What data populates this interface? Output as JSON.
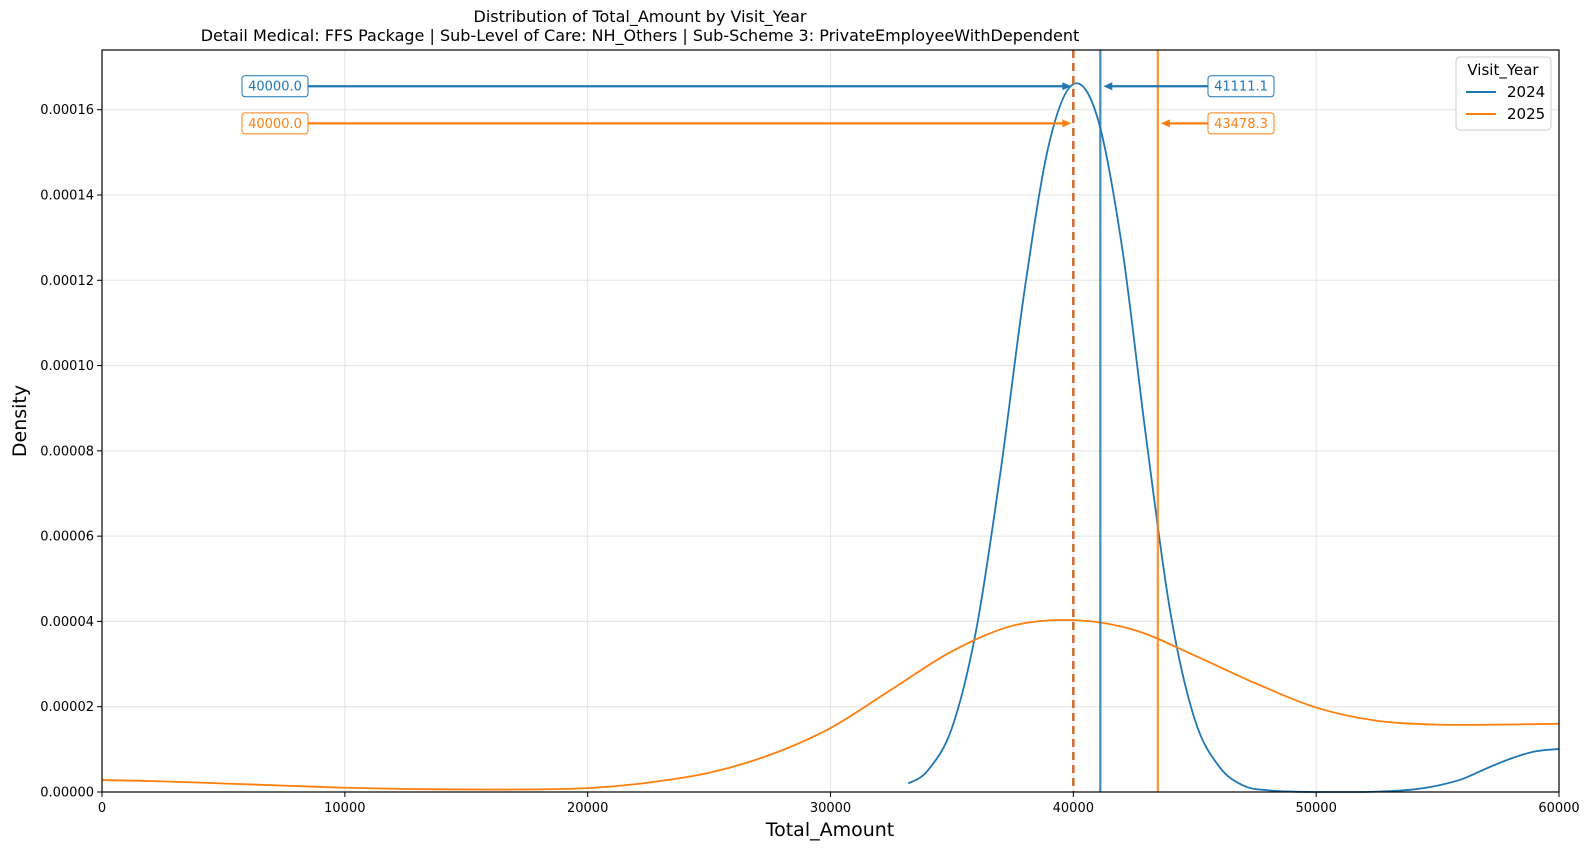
{
  "chart_data": {
    "type": "line",
    "title": "Distribution of Total_Amount by Visit_Year",
    "subtitle": "Detail Medical: FFS Package | Sub-Level of Care: NH_Others | Sub-Scheme 3: PrivateEmployeeWithDependent",
    "xlabel": "Total_Amount",
    "ylabel": "Density",
    "xlim": [
      0,
      60000
    ],
    "ylim": [
      0,
      0.000174
    ],
    "xticks": [
      0,
      10000,
      20000,
      30000,
      40000,
      50000,
      60000
    ],
    "xtick_labels": [
      "0",
      "10000",
      "20000",
      "30000",
      "40000",
      "50000",
      "60000"
    ],
    "yticks": [
      0,
      2e-05,
      4e-05,
      6e-05,
      8e-05,
      0.0001,
      0.00012,
      0.00014,
      0.00016
    ],
    "ytick_labels": [
      "0.00000",
      "0.00002",
      "0.00004",
      "0.00006",
      "0.00008",
      "0.00010",
      "0.00012",
      "0.00014",
      "0.00016"
    ],
    "grid": true,
    "legend": {
      "title": "Visit_Year",
      "placement": "top-right"
    },
    "series": [
      {
        "name": "2024",
        "color": "#1f77b4",
        "x": [
          33200,
          34000,
          35000,
          36000,
          37000,
          38000,
          39000,
          40000,
          41000,
          42000,
          43000,
          44000,
          45000,
          46000,
          47000,
          48000,
          49000,
          50000,
          51000,
          52000,
          53000,
          54000,
          55000,
          56000,
          57000,
          58000,
          59000,
          60000
        ],
        "y": [
          2e-06,
          5e-06,
          1.5e-05,
          3.8e-05,
          7.5e-05,
          0.000118,
          0.000152,
          0.000166,
          0.000158,
          0.000128,
          8.3e-05,
          4.2e-05,
          1.7e-05,
          6e-06,
          1.5e-06,
          4e-07,
          1e-07,
          0.0,
          0.0,
          0.0,
          2e-07,
          6e-07,
          1.5e-06,
          3e-06,
          5.5e-06,
          7.8e-06,
          9.5e-06,
          1.01e-05
        ],
        "mean": 41111.1,
        "median": 40000.0
      },
      {
        "name": "2025",
        "color": "#ff7f0e",
        "x": [
          0,
          2500,
          5000,
          7500,
          10000,
          12500,
          15000,
          17500,
          20000,
          22500,
          25000,
          27500,
          30000,
          32500,
          35000,
          37500,
          40000,
          42500,
          45000,
          47500,
          50000,
          52500,
          55000,
          57500,
          60000
        ],
        "y": [
          2.8e-06,
          2.5e-06,
          2e-06,
          1.5e-06,
          1e-06,
          7e-07,
          6e-07,
          6e-07,
          9e-07,
          2.2e-06,
          4.5e-06,
          8.7e-06,
          1.5e-05,
          2.4e-05,
          3.3e-05,
          3.9e-05,
          4.03e-05,
          3.8e-05,
          3.2e-05,
          2.55e-05,
          1.98e-05,
          1.67e-05,
          1.58e-05,
          1.58e-05,
          1.6e-05
        ],
        "mean": 43478.3,
        "median": 40000.0
      }
    ],
    "annotations": [
      {
        "series": "2024",
        "label": "40000.0",
        "kind": "median",
        "value": 40000.0,
        "y": 0.0001655,
        "side": "left"
      },
      {
        "series": "2024",
        "label": "41111.1",
        "kind": "mean",
        "value": 41111.1,
        "y": 0.0001655,
        "side": "right"
      },
      {
        "series": "2025",
        "label": "40000.0",
        "kind": "median",
        "value": 40000.0,
        "y": 0.0001568,
        "side": "left"
      },
      {
        "series": "2025",
        "label": "43478.3",
        "kind": "mean",
        "value": 43478.3,
        "y": 0.0001568,
        "side": "right"
      }
    ],
    "median_line_color": "#c87137"
  }
}
